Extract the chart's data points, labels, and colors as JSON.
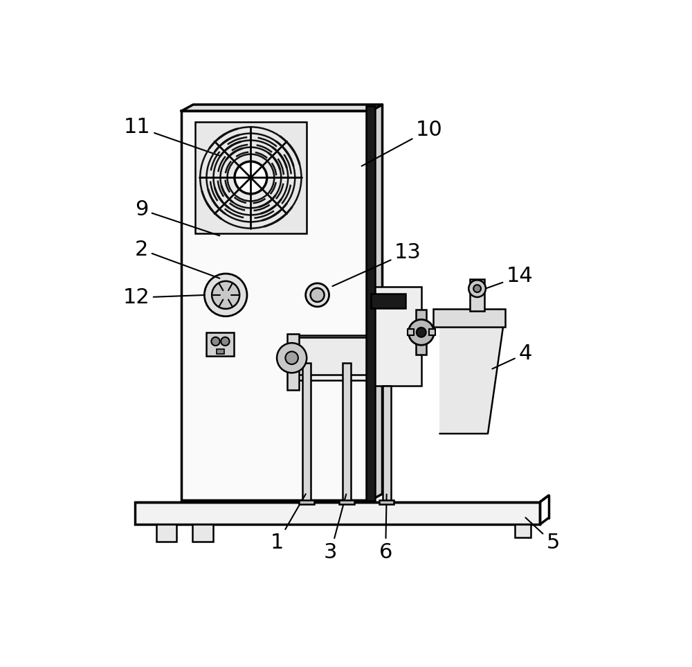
{
  "bg_color": "#ffffff",
  "line_color": "#000000",
  "fig_width": 10.0,
  "fig_height": 9.63,
  "label_fontsize": 22
}
